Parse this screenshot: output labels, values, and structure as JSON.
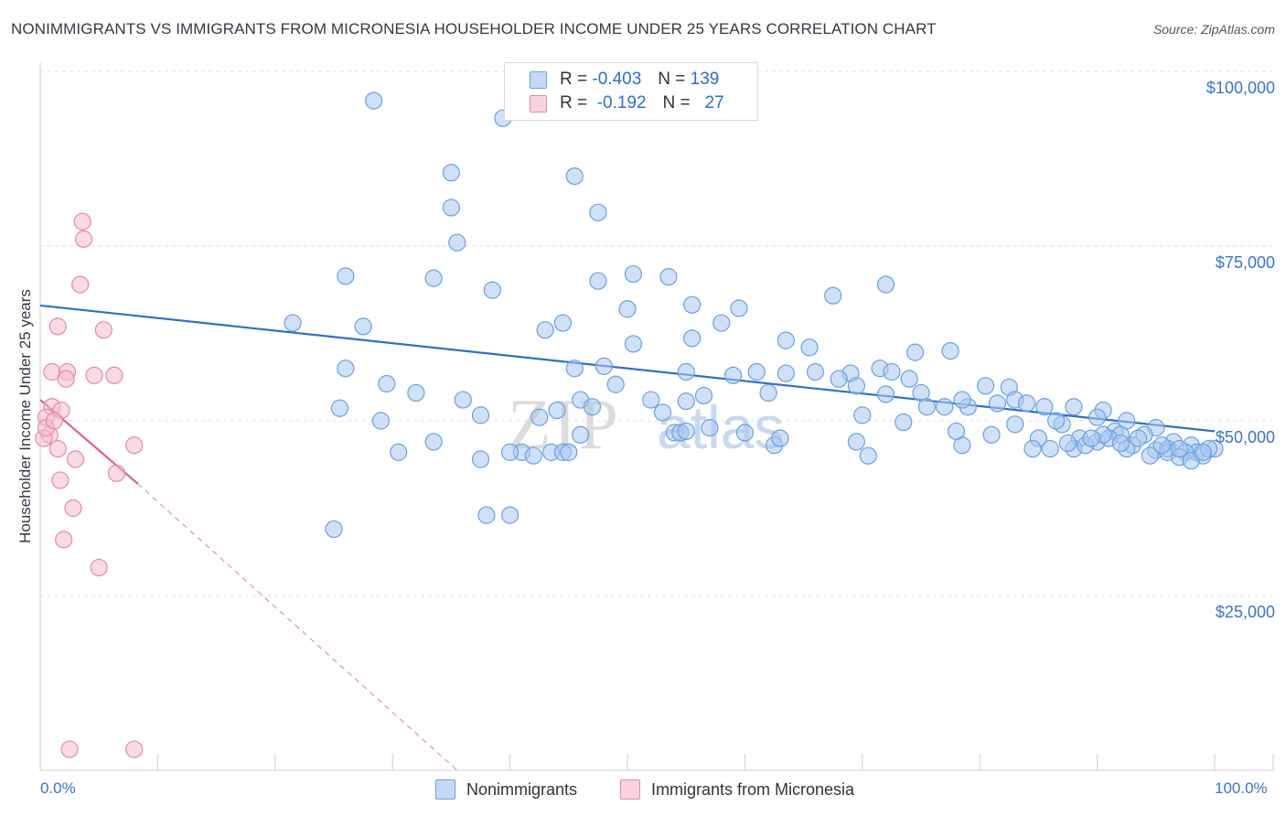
{
  "title": "NONIMMIGRANTS VS IMMIGRANTS FROM MICRONESIA HOUSEHOLDER INCOME UNDER 25 YEARS CORRELATION CHART",
  "source": "Source: ZipAtlas.com",
  "watermark": {
    "zip": "ZIP",
    "atlas": "atlas"
  },
  "legend_top": {
    "rows": [
      {
        "r_label": "R =",
        "r_value": "-0.403",
        "n_label": "N =",
        "n_value": "139",
        "color": "#aac8f0"
      },
      {
        "r_label": "R =",
        "r_value": " -0.192",
        "n_label": "N =",
        "n_value": "27",
        "color": "#f6bccd"
      }
    ]
  },
  "legend_bottom": {
    "items": [
      {
        "label": "Nonimmigrants",
        "color": "#aac8f0"
      },
      {
        "label": "Immigrants from Micronesia",
        "color": "#f6bccd"
      }
    ]
  },
  "chart_data": {
    "type": "scatter",
    "title": "NONIMMIGRANTS VS IMMIGRANTS FROM MICRONESIA HOUSEHOLDER INCOME UNDER 25 YEARS CORRELATION CHART",
    "xlabel": "",
    "ylabel": "Householder Income Under 25 years",
    "xlim": [
      0,
      100
    ],
    "ylim": [
      0,
      105000
    ],
    "x_tick_labels": [
      "0.0%",
      "100.0%"
    ],
    "y_ticks": [
      25000,
      50000,
      75000,
      100000
    ],
    "y_tick_labels": [
      "$25,000",
      "$50,000",
      "$75,000",
      "$100,000"
    ],
    "grid": true,
    "series": [
      {
        "name": "Nonimmigrants",
        "color": "#aac8f0",
        "stroke": "#6a9fe0",
        "trend": {
          "x": [
            0,
            100
          ],
          "y": [
            66500,
            48500
          ],
          "color": "#2f6fc7"
        },
        "points": [
          [
            28.4,
            95.8
          ],
          [
            39.4,
            93.3
          ],
          [
            35.0,
            85.5
          ],
          [
            45.5,
            85.0
          ],
          [
            35.0,
            80.5
          ],
          [
            47.5,
            79.8
          ],
          [
            35.5,
            75.5
          ],
          [
            26.0,
            70.7
          ],
          [
            33.5,
            70.4
          ],
          [
            50.5,
            71.0
          ],
          [
            47.5,
            70.0
          ],
          [
            53.5,
            70.6
          ],
          [
            72.0,
            69.5
          ],
          [
            38.5,
            68.7
          ],
          [
            67.5,
            67.9
          ],
          [
            55.5,
            66.6
          ],
          [
            50.0,
            66.0
          ],
          [
            59.5,
            66.1
          ],
          [
            43.0,
            63.0
          ],
          [
            44.5,
            64.0
          ],
          [
            27.5,
            63.5
          ],
          [
            58.0,
            64.0
          ],
          [
            21.5,
            64.0
          ],
          [
            55.5,
            61.8
          ],
          [
            63.5,
            61.5
          ],
          [
            50.5,
            61.0
          ],
          [
            65.5,
            60.5
          ],
          [
            74.5,
            59.8
          ],
          [
            77.5,
            60.0
          ],
          [
            26.0,
            57.5
          ],
          [
            45.5,
            57.5
          ],
          [
            48.0,
            57.8
          ],
          [
            55.0,
            57.0
          ],
          [
            61.0,
            57.0
          ],
          [
            66.0,
            57.0
          ],
          [
            71.5,
            57.5
          ],
          [
            72.5,
            57.0
          ],
          [
            69.0,
            56.8
          ],
          [
            59.0,
            56.5
          ],
          [
            63.5,
            56.8
          ],
          [
            68.0,
            56.0
          ],
          [
            74.0,
            56.0
          ],
          [
            29.5,
            55.3
          ],
          [
            49.0,
            55.2
          ],
          [
            69.5,
            55.0
          ],
          [
            62.0,
            54.0
          ],
          [
            56.5,
            53.6
          ],
          [
            32.0,
            54.0
          ],
          [
            75.0,
            54.0
          ],
          [
            80.5,
            55.0
          ],
          [
            82.5,
            54.8
          ],
          [
            72.0,
            53.8
          ],
          [
            36.0,
            53.0
          ],
          [
            46.0,
            53.0
          ],
          [
            52.0,
            53.0
          ],
          [
            55.0,
            52.8
          ],
          [
            75.5,
            52.0
          ],
          [
            77.0,
            52.0
          ],
          [
            79.0,
            52.0
          ],
          [
            78.5,
            53.0
          ],
          [
            81.5,
            52.5
          ],
          [
            83.0,
            53.0
          ],
          [
            85.5,
            52.0
          ],
          [
            84.0,
            52.5
          ],
          [
            88.0,
            52.0
          ],
          [
            90.5,
            51.5
          ],
          [
            25.5,
            51.8
          ],
          [
            47.0,
            52.0
          ],
          [
            44.0,
            51.5
          ],
          [
            53.0,
            51.2
          ],
          [
            70.0,
            50.8
          ],
          [
            90.0,
            50.5
          ],
          [
            92.5,
            50.0
          ],
          [
            95.0,
            49.0
          ],
          [
            37.5,
            50.8
          ],
          [
            42.5,
            50.5
          ],
          [
            29.0,
            50.0
          ],
          [
            73.5,
            49.8
          ],
          [
            83.0,
            49.5
          ],
          [
            87.0,
            49.5
          ],
          [
            91.5,
            48.5
          ],
          [
            92.0,
            48.0
          ],
          [
            94.0,
            48.0
          ],
          [
            60.0,
            48.3
          ],
          [
            54.0,
            48.3
          ],
          [
            54.5,
            48.3
          ],
          [
            46.0,
            48.0
          ],
          [
            81.0,
            48.0
          ],
          [
            88.5,
            47.5
          ],
          [
            90.0,
            47.0
          ],
          [
            96.5,
            47.0
          ],
          [
            69.5,
            47.0
          ],
          [
            78.5,
            46.5
          ],
          [
            33.5,
            47.0
          ],
          [
            62.5,
            46.5
          ],
          [
            93.0,
            46.5
          ],
          [
            88.0,
            46.0
          ],
          [
            98.0,
            46.5
          ],
          [
            100.0,
            46.0
          ],
          [
            96.0,
            46.0
          ],
          [
            98.5,
            45.5
          ],
          [
            95.0,
            45.8
          ],
          [
            30.5,
            45.5
          ],
          [
            41.0,
            45.5
          ],
          [
            43.5,
            45.5
          ],
          [
            44.5,
            45.5
          ],
          [
            42.0,
            45.0
          ],
          [
            86.0,
            46.0
          ],
          [
            89.0,
            46.5
          ],
          [
            92.5,
            46.0
          ],
          [
            96.0,
            45.5
          ],
          [
            97.5,
            45.5
          ],
          [
            99.0,
            45.0
          ],
          [
            97.0,
            44.8
          ],
          [
            98.0,
            44.3
          ],
          [
            94.5,
            45.0
          ],
          [
            37.5,
            44.5
          ],
          [
            70.5,
            45.0
          ],
          [
            45.0,
            45.5
          ],
          [
            40.0,
            45.5
          ],
          [
            63.0,
            47.5
          ],
          [
            55.0,
            48.5
          ],
          [
            57.0,
            49.0
          ],
          [
            78.0,
            48.5
          ],
          [
            91.0,
            47.5
          ],
          [
            85.0,
            47.5
          ],
          [
            87.5,
            46.8
          ],
          [
            93.5,
            47.5
          ],
          [
            99.5,
            46.0
          ],
          [
            38.0,
            36.5
          ],
          [
            40.0,
            36.5
          ],
          [
            25.0,
            34.5
          ],
          [
            84.5,
            46.0
          ],
          [
            86.5,
            50.0
          ],
          [
            90.5,
            48.0
          ],
          [
            99.0,
            45.5
          ],
          [
            95.5,
            46.5
          ],
          [
            92.0,
            46.8
          ],
          [
            89.5,
            47.5
          ],
          [
            97.0,
            46.0
          ]
        ]
      },
      {
        "name": "Immigrants from Micronesia",
        "color": "#f6bccd",
        "stroke": "#e38ba6",
        "trend": {
          "x": [
            0,
            8.3
          ],
          "y": [
            53000,
            41000
          ],
          "color": "#e0608a",
          "dashed_extension_to": [
            35.5,
            0
          ]
        },
        "points": [
          [
            3.6,
            78.5
          ],
          [
            3.7,
            76.0
          ],
          [
            3.4,
            69.5
          ],
          [
            1.5,
            63.5
          ],
          [
            5.4,
            63.0
          ],
          [
            1.0,
            57.0
          ],
          [
            2.3,
            57.0
          ],
          [
            4.6,
            56.5
          ],
          [
            6.3,
            56.5
          ],
          [
            2.2,
            56.0
          ],
          [
            1.0,
            52.0
          ],
          [
            1.8,
            51.5
          ],
          [
            0.5,
            50.5
          ],
          [
            0.8,
            48.0
          ],
          [
            0.3,
            47.5
          ],
          [
            1.5,
            46.0
          ],
          [
            8.0,
            46.5
          ],
          [
            3.0,
            44.5
          ],
          [
            6.5,
            42.5
          ],
          [
            1.7,
            41.5
          ],
          [
            2.8,
            37.5
          ],
          [
            2.0,
            33.0
          ],
          [
            5.0,
            29.0
          ],
          [
            2.5,
            3.0
          ],
          [
            8.0,
            3.0
          ],
          [
            0.5,
            49.0
          ],
          [
            1.2,
            50.0
          ]
        ]
      }
    ]
  }
}
